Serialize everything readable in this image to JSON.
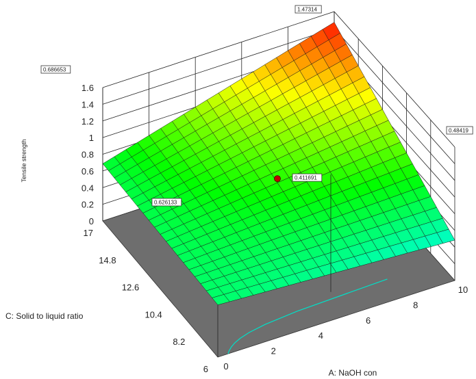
{
  "chart_data": {
    "type": "surface",
    "title": "",
    "zlabel": "Tensile strength",
    "xlabel": "A: NaOH con",
    "ylabel": "C: Solid to liquid ratio",
    "x_ticks": [
      "0",
      "2",
      "4",
      "6",
      "8",
      "10"
    ],
    "y_ticks": [
      "6",
      "8.2",
      "10.4",
      "12.6",
      "14.8",
      "17"
    ],
    "z_ticks": [
      "0",
      "0.2",
      "0.4",
      "0.6",
      "0.8",
      "1",
      "1.2",
      "1.4",
      "1.6"
    ],
    "xlim": [
      0,
      10
    ],
    "ylim": [
      6,
      17
    ],
    "zlim": [
      0,
      1.6
    ],
    "colormap": [
      "#0000ff",
      "#00ffff",
      "#00ff00",
      "#ffff00",
      "#ff0000"
    ],
    "floor_color": "#6e6e6e",
    "contour_color": "#00e0c8",
    "design_point_color": "#c00000",
    "corner_values": [
      {
        "label": "1.47314",
        "x": 10,
        "y": 17,
        "z": 1.47314
      },
      {
        "label": "0.686653",
        "x": 0,
        "y": 17,
        "z": 0.686653
      },
      {
        "label": "0.48419",
        "x": 10,
        "y": 6,
        "z": 0.48419
      },
      {
        "label": "0.626133",
        "x": 0,
        "y": 6,
        "z": 0.626133
      }
    ],
    "design_point": {
      "label": "0.411691",
      "x": 5,
      "y": 11.5,
      "z": 0.411691
    },
    "surface_grid": 20
  }
}
